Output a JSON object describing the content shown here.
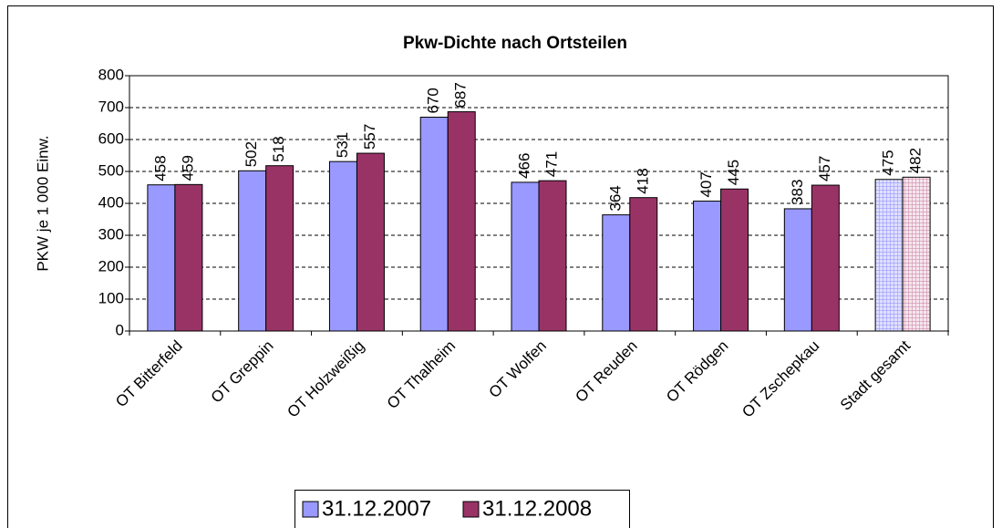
{
  "chart_data": {
    "type": "bar",
    "title": "Pkw-Dichte nach Ortsteilen",
    "y_label": "PKW je 1 000 Einw.",
    "categories": [
      "OT Bitterfeld",
      "OT Greppin",
      "OT Holzweißig",
      "OT Thalheim",
      "OT Wolfen",
      "OT Reuden",
      "OT Rödgen",
      "OT Zschepkau",
      "Stadt gesamt"
    ],
    "series": [
      {
        "name": "31.12.2007",
        "color": "#9999ff",
        "values": [
          458,
          502,
          531,
          670,
          466,
          364,
          407,
          383,
          475
        ]
      },
      {
        "name": "31.12.2008",
        "color": "#993366",
        "values": [
          459,
          518,
          557,
          687,
          471,
          418,
          445,
          457,
          482
        ]
      }
    ],
    "ylim": [
      0,
      800
    ],
    "yticks": [
      0,
      100,
      200,
      300,
      400,
      500,
      600,
      700,
      800
    ],
    "grid": true,
    "legend": "bottom"
  }
}
